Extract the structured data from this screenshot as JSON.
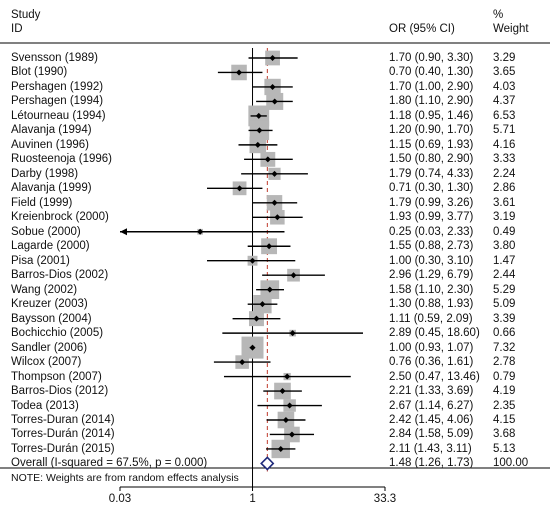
{
  "chart_data": {
    "type": "forest",
    "title": "",
    "headers": {
      "study_line1": "Study",
      "study_line2": "ID",
      "effect": "OR (95% CI)",
      "weight_line1": "%",
      "weight_line2": "Weight"
    },
    "x_scale": "log",
    "xlim": [
      0.03,
      33.3
    ],
    "x_ticks": [
      "0.03",
      "1",
      "33.3"
    ],
    "null_value": 1,
    "studies": [
      {
        "label": "Svensson (1989)",
        "or": 1.7,
        "lo": 0.9,
        "hi": 3.3,
        "ci_text": "1.70 (0.90, 3.30)",
        "weight": 3.29,
        "weight_text": "3.29"
      },
      {
        "label": "Blot (1990)",
        "or": 0.7,
        "lo": 0.4,
        "hi": 1.3,
        "ci_text": "0.70 (0.40, 1.30)",
        "weight": 3.65,
        "weight_text": "3.65"
      },
      {
        "label": "Pershagen (1992)",
        "or": 1.7,
        "lo": 1.0,
        "hi": 2.9,
        "ci_text": "1.70 (1.00, 2.90)",
        "weight": 4.03,
        "weight_text": "4.03"
      },
      {
        "label": "Pershagen (1994)",
        "or": 1.8,
        "lo": 1.1,
        "hi": 2.9,
        "ci_text": "1.80 (1.10, 2.90)",
        "weight": 4.37,
        "weight_text": "4.37"
      },
      {
        "label": "Létourneau (1994)",
        "or": 1.18,
        "lo": 0.95,
        "hi": 1.46,
        "ci_text": "1.18 (0.95, 1.46)",
        "weight": 6.53,
        "weight_text": "6.53"
      },
      {
        "label": "Alavanja (1994)",
        "or": 1.2,
        "lo": 0.9,
        "hi": 1.7,
        "ci_text": "1.20 (0.90, 1.70)",
        "weight": 5.71,
        "weight_text": "5.71"
      },
      {
        "label": "Auvinen (1996)",
        "or": 1.15,
        "lo": 0.69,
        "hi": 1.93,
        "ci_text": "1.15 (0.69, 1.93)",
        "weight": 4.16,
        "weight_text": "4.16"
      },
      {
        "label": "Ruosteenoja (1996)",
        "or": 1.5,
        "lo": 0.8,
        "hi": 2.9,
        "ci_text": "1.50 (0.80, 2.90)",
        "weight": 3.33,
        "weight_text": "3.33"
      },
      {
        "label": "Darby (1998)",
        "or": 1.79,
        "lo": 0.74,
        "hi": 4.33,
        "ci_text": "1.79 (0.74, 4.33)",
        "weight": 2.24,
        "weight_text": "2.24"
      },
      {
        "label": "Alavanja (1999)",
        "or": 0.71,
        "lo": 0.3,
        "hi": 1.3,
        "ci_text": "0.71 (0.30, 1.30)",
        "weight": 2.86,
        "weight_text": "2.86"
      },
      {
        "label": "Field (1999)",
        "or": 1.79,
        "lo": 0.99,
        "hi": 3.26,
        "ci_text": "1.79 (0.99, 3.26)",
        "weight": 3.61,
        "weight_text": "3.61"
      },
      {
        "label": "Kreienbrock (2000)",
        "or": 1.93,
        "lo": 0.99,
        "hi": 3.77,
        "ci_text": "1.93 (0.99, 3.77)",
        "weight": 3.19,
        "weight_text": "3.19"
      },
      {
        "label": "Sobue (2000)",
        "or": 0.25,
        "lo": 0.03,
        "hi": 2.33,
        "ci_text": "0.25 (0.03, 2.33)",
        "weight": 0.49,
        "weight_text": "0.49",
        "arrow_left": true
      },
      {
        "label": "Lagarde (2000)",
        "or": 1.55,
        "lo": 0.88,
        "hi": 2.73,
        "ci_text": "1.55 (0.88, 2.73)",
        "weight": 3.8,
        "weight_text": "3.80"
      },
      {
        "label": "Pisa (2001)",
        "or": 1.0,
        "lo": 0.3,
        "hi": 3.1,
        "ci_text": "1.00 (0.30, 3.10)",
        "weight": 1.47,
        "weight_text": "1.47"
      },
      {
        "label": "Barros-Dios (2002)",
        "or": 2.96,
        "lo": 1.29,
        "hi": 6.79,
        "ci_text": "2.96 (1.29, 6.79)",
        "weight": 2.44,
        "weight_text": "2.44"
      },
      {
        "label": "Wang (2002)",
        "or": 1.58,
        "lo": 1.1,
        "hi": 2.3,
        "ci_text": "1.58 (1.10, 2.30)",
        "weight": 5.29,
        "weight_text": "5.29"
      },
      {
        "label": "Kreuzer (2003)",
        "or": 1.3,
        "lo": 0.88,
        "hi": 1.93,
        "ci_text": "1.30 (0.88, 1.93)",
        "weight": 5.09,
        "weight_text": "5.09"
      },
      {
        "label": "Baysson (2004)",
        "or": 1.11,
        "lo": 0.59,
        "hi": 2.09,
        "ci_text": "1.11 (0.59, 2.09)",
        "weight": 3.39,
        "weight_text": "3.39"
      },
      {
        "label": "Bochicchio (2005)",
        "or": 2.89,
        "lo": 0.45,
        "hi": 18.6,
        "ci_text": "2.89 (0.45, 18.60)",
        "weight": 0.66,
        "weight_text": "0.66"
      },
      {
        "label": "Sandler (2006)",
        "or": 1.0,
        "lo": 0.93,
        "hi": 1.07,
        "ci_text": "1.00 (0.93, 1.07)",
        "weight": 7.32,
        "weight_text": "7.32"
      },
      {
        "label": "Wilcox (2007)",
        "or": 0.76,
        "lo": 0.36,
        "hi": 1.61,
        "ci_text": "0.76 (0.36, 1.61)",
        "weight": 2.78,
        "weight_text": "2.78"
      },
      {
        "label": "Thompson (2007)",
        "or": 2.5,
        "lo": 0.47,
        "hi": 13.46,
        "ci_text": "2.50 (0.47, 13.46)",
        "weight": 0.79,
        "weight_text": "0.79"
      },
      {
        "label": "Barros-Dios (2012)",
        "or": 2.21,
        "lo": 1.33,
        "hi": 3.69,
        "ci_text": "2.21 (1.33, 3.69)",
        "weight": 4.19,
        "weight_text": "4.19"
      },
      {
        "label": "Todea (2013)",
        "or": 2.67,
        "lo": 1.14,
        "hi": 6.27,
        "ci_text": "2.67 (1.14, 6.27)",
        "weight": 2.35,
        "weight_text": "2.35"
      },
      {
        "label": "Torres-Duran (2014)",
        "or": 2.42,
        "lo": 1.45,
        "hi": 4.06,
        "ci_text": "2.42 (1.45, 4.06)",
        "weight": 4.15,
        "weight_text": "4.15"
      },
      {
        "label": "Torres-Durán (2014)",
        "or": 2.84,
        "lo": 1.58,
        "hi": 5.09,
        "ci_text": "2.84 (1.58, 5.09)",
        "weight": 3.68,
        "weight_text": "3.68"
      },
      {
        "label": "Torres-Durán (2015)",
        "or": 2.11,
        "lo": 1.43,
        "hi": 3.11,
        "ci_text": "2.11 (1.43, 3.11)",
        "weight": 5.13,
        "weight_text": "5.13"
      }
    ],
    "overall": {
      "label": "Overall  (I-squared = 67.5%, p = 0.000)",
      "or": 1.48,
      "lo": 1.26,
      "hi": 1.73,
      "ci_text": "1.48 (1.26, 1.73)",
      "weight_text": "100.00"
    },
    "note": "NOTE: Weights are from random effects analysis",
    "colors": {
      "box": "#b7b7b7",
      "line": "#000000",
      "null_line": "#000000",
      "overall_line": "#c0392b",
      "diamond": "#1f2a7a"
    }
  }
}
